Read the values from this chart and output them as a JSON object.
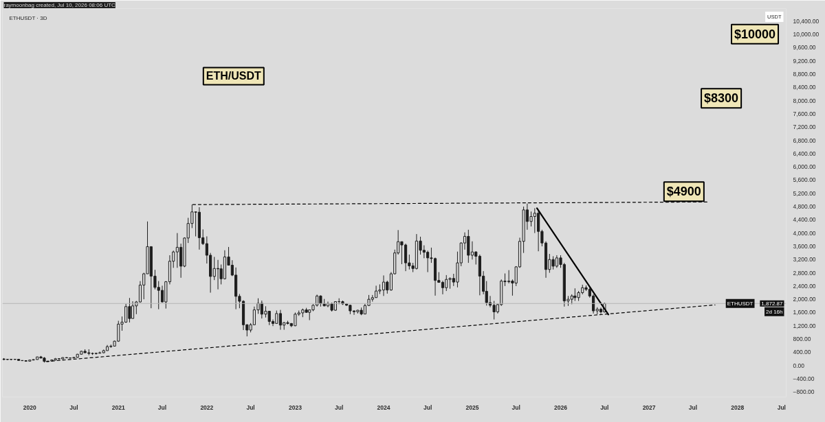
{
  "chart_data": {
    "type": "candlestick",
    "title": "ETH/USDT",
    "subtitle": "ETHUSDT · 3D",
    "ylabel": "USDT",
    "annotations": [
      "raymoonbag created, Jul 10, 2026 08:06 UTC",
      "$4900",
      "$8300",
      "$10000",
      "1,872.87",
      "2d 16h"
    ],
    "xlim": [
      "2019-09-10",
      "2028-07-20"
    ],
    "ylim": [
      -950,
      10780
    ],
    "xticks": [
      {
        "value": "2020",
        "label": "2020"
      },
      {
        "value": "2020-07",
        "label": "Jul"
      },
      {
        "value": "2021",
        "label": "2021"
      },
      {
        "value": "2021-07",
        "label": "Jul"
      },
      {
        "value": "2022",
        "label": "2022"
      },
      {
        "value": "2022-07",
        "label": "Jul"
      },
      {
        "value": "2023",
        "label": "2023"
      },
      {
        "value": "2023-07",
        "label": "Jul"
      },
      {
        "value": "2024",
        "label": "2024"
      },
      {
        "value": "2024-07",
        "label": "Jul"
      },
      {
        "value": "2025",
        "label": "2025"
      },
      {
        "value": "2025-07",
        "label": "Jul"
      },
      {
        "value": "2026",
        "label": "2026"
      },
      {
        "value": "2026-07",
        "label": "Jul"
      },
      {
        "value": "2027",
        "label": "2027"
      },
      {
        "value": "2027-07",
        "label": "Jul"
      },
      {
        "value": "2028",
        "label": "2028"
      },
      {
        "value": "2028-07",
        "label": "Jul"
      }
    ],
    "yticks": [
      {
        "value": -800,
        "label": "−800.00"
      },
      {
        "value": -400,
        "label": "−400.00"
      },
      {
        "value": 0,
        "label": "0.00"
      },
      {
        "value": 400,
        "label": "400.00"
      },
      {
        "value": 800,
        "label": "800.00"
      },
      {
        "value": 1200,
        "label": "1,200.00"
      },
      {
        "value": 1600,
        "label": "1,600.00"
      },
      {
        "value": 2000,
        "label": "2,000.00"
      },
      {
        "value": 2400,
        "label": "2,400.00"
      },
      {
        "value": 2800,
        "label": "2,800.00"
      },
      {
        "value": 3200,
        "label": "3,200.00"
      },
      {
        "value": 3600,
        "label": "3,600.00"
      },
      {
        "value": 4000,
        "label": "4,000.00"
      },
      {
        "value": 4400,
        "label": "4,400.00"
      },
      {
        "value": 4800,
        "label": "4,800.00"
      },
      {
        "value": 5200,
        "label": "5,200.00"
      },
      {
        "value": 5600,
        "label": "5,600.00"
      },
      {
        "value": 6000,
        "label": "6,000.00"
      },
      {
        "value": 6400,
        "label": "6,400.00"
      },
      {
        "value": 6800,
        "label": "6,800.00"
      },
      {
        "value": 7200,
        "label": "7,200.00"
      },
      {
        "value": 7600,
        "label": "7,600.00"
      },
      {
        "value": 8000,
        "label": "8,000.00"
      },
      {
        "value": 8400,
        "label": "8,400.00"
      },
      {
        "value": 8800,
        "label": "8,800.00"
      },
      {
        "value": 9200,
        "label": "9,200.00"
      },
      {
        "value": 9600,
        "label": "9,600.00"
      },
      {
        "value": 10000,
        "label": "10,000.00"
      },
      {
        "value": 10400,
        "label": "10,400.00"
      }
    ],
    "ref_lines": [
      {
        "axis": "y",
        "value": 1872.87,
        "label": "ETHUSDT",
        "color": "#b4b4b4"
      }
    ],
    "series": [
      {
        "color": "#1e1e1e",
        "x": [
          "2019-09-16",
          "2019-10-01",
          "2019-10-16",
          "2019-11-01",
          "2019-11-16",
          "2019-12-01",
          "2019-12-16",
          "2020-01-01",
          "2020-01-16",
          "2020-02-01",
          "2020-02-16",
          "2020-03-01",
          "2020-03-16",
          "2020-04-01",
          "2020-04-16",
          "2020-05-01",
          "2020-05-16",
          "2020-06-01",
          "2020-06-16",
          "2020-07-01",
          "2020-07-16",
          "2020-08-01",
          "2020-08-16",
          "2020-09-01",
          "2020-09-16",
          "2020-10-01",
          "2020-10-16",
          "2020-11-01",
          "2020-11-16",
          "2020-12-01",
          "2020-12-16",
          "2021-01-01",
          "2021-01-16",
          "2021-02-01",
          "2021-02-16",
          "2021-03-01",
          "2021-03-16",
          "2021-04-01",
          "2021-04-16",
          "2021-05-01",
          "2021-05-16",
          "2021-06-01",
          "2021-06-16",
          "2021-07-01",
          "2021-07-16",
          "2021-08-01",
          "2021-08-16",
          "2021-09-01",
          "2021-09-16",
          "2021-10-01",
          "2021-10-16",
          "2021-11-01",
          "2021-11-16",
          "2021-12-01",
          "2021-12-16",
          "2022-01-01",
          "2022-01-16",
          "2022-02-01",
          "2022-02-16",
          "2022-03-01",
          "2022-03-16",
          "2022-04-01",
          "2022-04-16",
          "2022-05-01",
          "2022-05-16",
          "2022-06-01",
          "2022-06-16",
          "2022-07-01",
          "2022-07-16",
          "2022-08-01",
          "2022-08-16",
          "2022-09-01",
          "2022-09-16",
          "2022-10-01",
          "2022-10-16",
          "2022-11-01",
          "2022-11-16",
          "2022-12-01",
          "2022-12-16",
          "2023-01-01",
          "2023-01-16",
          "2023-02-01",
          "2023-02-16",
          "2023-03-01",
          "2023-03-16",
          "2023-04-01",
          "2023-04-16",
          "2023-05-01",
          "2023-05-16",
          "2023-06-01",
          "2023-06-16",
          "2023-07-01",
          "2023-07-16",
          "2023-08-01",
          "2023-08-16",
          "2023-09-01",
          "2023-09-16",
          "2023-10-01",
          "2023-10-16",
          "2023-11-01",
          "2023-11-16",
          "2023-12-01",
          "2023-12-16",
          "2024-01-01",
          "2024-01-16",
          "2024-02-01",
          "2024-02-16",
          "2024-03-01",
          "2024-03-16",
          "2024-04-01",
          "2024-04-16",
          "2024-05-01",
          "2024-05-16",
          "2024-06-01",
          "2024-06-16",
          "2024-07-01",
          "2024-07-16",
          "2024-08-01",
          "2024-08-16",
          "2024-09-01",
          "2024-09-16",
          "2024-10-01",
          "2024-10-16",
          "2024-11-01",
          "2024-11-16",
          "2024-12-01",
          "2024-12-16",
          "2025-01-01",
          "2025-01-16",
          "2025-02-01",
          "2025-02-16",
          "2025-03-01",
          "2025-03-16",
          "2025-04-01",
          "2025-04-16",
          "2025-05-01",
          "2025-05-16",
          "2025-06-01",
          "2025-06-16",
          "2025-07-01",
          "2025-07-16",
          "2025-08-01",
          "2025-08-16",
          "2025-09-01",
          "2025-09-16",
          "2025-10-01",
          "2025-10-16",
          "2025-11-01",
          "2025-11-16",
          "2025-12-01",
          "2025-12-16",
          "2026-01-01",
          "2026-01-16",
          "2026-02-01",
          "2026-02-16",
          "2026-03-01",
          "2026-03-16",
          "2026-04-01",
          "2026-04-16",
          "2026-05-01",
          "2026-05-16",
          "2026-06-01",
          "2026-06-16",
          "2026-07-01"
        ],
        "ohlc": [
          [
            197,
            222,
            163,
            180
          ],
          [
            180,
            195,
            165,
            188
          ],
          [
            188,
            198,
            157,
            183
          ],
          [
            183,
            197,
            175,
            188
          ],
          [
            188,
            190,
            140,
            152
          ],
          [
            152,
            155,
            140,
            146
          ],
          [
            146,
            150,
            116,
            130
          ],
          [
            130,
            170,
            127,
            165
          ],
          [
            165,
            185,
            155,
            180
          ],
          [
            180,
            265,
            175,
            260
          ],
          [
            260,
            288,
            215,
            225
          ],
          [
            225,
            253,
            90,
            125
          ],
          [
            125,
            140,
            100,
            133
          ],
          [
            133,
            175,
            130,
            170
          ],
          [
            170,
            227,
            150,
            205
          ],
          [
            205,
            215,
            180,
            200
          ],
          [
            200,
            245,
            195,
            240
          ],
          [
            240,
            250,
            225,
            230
          ],
          [
            230,
            240,
            215,
            225
          ],
          [
            225,
            250,
            220,
            245
          ],
          [
            245,
            350,
            235,
            340
          ],
          [
            340,
            445,
            340,
            430
          ],
          [
            430,
            490,
            380,
            385
          ],
          [
            385,
            490,
            310,
            365
          ],
          [
            365,
            390,
            320,
            360
          ],
          [
            360,
            385,
            330,
            370
          ],
          [
            370,
            420,
            365,
            385
          ],
          [
            385,
            480,
            370,
            450
          ],
          [
            450,
            620,
            445,
            570
          ],
          [
            570,
            630,
            535,
            585
          ],
          [
            585,
            750,
            580,
            735
          ],
          [
            735,
            1350,
            715,
            1250
          ],
          [
            1250,
            1480,
            1050,
            1310
          ],
          [
            1310,
            1860,
            1290,
            1780
          ],
          [
            1780,
            2040,
            1300,
            1420
          ],
          [
            1420,
            1940,
            1420,
            1800
          ],
          [
            1800,
            1950,
            1550,
            1920
          ],
          [
            1920,
            2550,
            1900,
            2430
          ],
          [
            2430,
            2800,
            2000,
            2770
          ],
          [
            2770,
            4350,
            2770,
            3590
          ],
          [
            3590,
            3600,
            1730,
            2700
          ],
          [
            2700,
            2890,
            2300,
            2360
          ],
          [
            2360,
            2550,
            1700,
            2270
          ],
          [
            2270,
            2410,
            1900,
            1920
          ],
          [
            1920,
            2550,
            1720,
            2530
          ],
          [
            2530,
            3330,
            2450,
            3150
          ],
          [
            3150,
            3470,
            2950,
            3430
          ],
          [
            3430,
            4000,
            2950,
            3570
          ],
          [
            3570,
            3680,
            2650,
            3000
          ],
          [
            3000,
            3870,
            2970,
            3850
          ],
          [
            3850,
            4460,
            3700,
            4290
          ],
          [
            4290,
            4860,
            4150,
            4640
          ],
          [
            4640,
            4640,
            3900,
            4630
          ],
          [
            4630,
            4780,
            3500,
            3860
          ],
          [
            3860,
            4110,
            3640,
            3680
          ],
          [
            3680,
            3900,
            3080,
            3330
          ],
          [
            3330,
            3400,
            2200,
            2690
          ],
          [
            2690,
            3280,
            2580,
            2930
          ],
          [
            2930,
            3190,
            2300,
            2920
          ],
          [
            2920,
            3050,
            2450,
            2620
          ],
          [
            2620,
            3480,
            2600,
            3280
          ],
          [
            3280,
            3580,
            3020,
            3030
          ],
          [
            3030,
            3180,
            2700,
            2730
          ],
          [
            2730,
            2960,
            1700,
            2090
          ],
          [
            2090,
            2160,
            1730,
            1940
          ],
          [
            1940,
            1970,
            1070,
            1230
          ],
          [
            1230,
            1250,
            880,
            1070
          ],
          [
            1070,
            1280,
            1000,
            1230
          ],
          [
            1230,
            1780,
            1230,
            1680
          ],
          [
            1680,
            2030,
            1560,
            1880
          ],
          [
            1880,
            1960,
            1420,
            1550
          ],
          [
            1550,
            1790,
            1450,
            1640
          ],
          [
            1640,
            1650,
            1220,
            1330
          ],
          [
            1330,
            1390,
            1190,
            1270
          ],
          [
            1270,
            1660,
            1270,
            1570
          ],
          [
            1570,
            1680,
            1080,
            1220
          ],
          [
            1220,
            1310,
            1080,
            1295
          ],
          [
            1295,
            1350,
            1240,
            1270
          ],
          [
            1270,
            1280,
            1160,
            1200
          ],
          [
            1200,
            1600,
            1190,
            1550
          ],
          [
            1550,
            1660,
            1500,
            1590
          ],
          [
            1590,
            1720,
            1460,
            1680
          ],
          [
            1680,
            1740,
            1590,
            1605
          ],
          [
            1605,
            1680,
            1370,
            1680
          ],
          [
            1680,
            1850,
            1640,
            1820
          ],
          [
            1820,
            2140,
            1780,
            2100
          ],
          [
            2100,
            2120,
            1780,
            1870
          ],
          [
            1870,
            2010,
            1790,
            1800
          ],
          [
            1800,
            1930,
            1760,
            1870
          ],
          [
            1870,
            1900,
            1630,
            1670
          ],
          [
            1670,
            1930,
            1650,
            1930
          ],
          [
            1930,
            2030,
            1850,
            1930
          ],
          [
            1930,
            1960,
            1830,
            1860
          ],
          [
            1860,
            1880,
            1800,
            1820
          ],
          [
            1820,
            1830,
            1550,
            1650
          ],
          [
            1650,
            1660,
            1530,
            1625
          ],
          [
            1625,
            1680,
            1570,
            1670
          ],
          [
            1670,
            1750,
            1520,
            1555
          ],
          [
            1555,
            1860,
            1550,
            1810
          ],
          [
            1810,
            2130,
            1800,
            2000
          ],
          [
            2000,
            2130,
            1930,
            2050
          ],
          [
            2050,
            2410,
            2050,
            2250
          ],
          [
            2250,
            2450,
            2160,
            2280
          ],
          [
            2280,
            2720,
            2100,
            2520
          ],
          [
            2520,
            2560,
            2170,
            2280
          ],
          [
            2280,
            2820,
            2260,
            2770
          ],
          [
            2770,
            3500,
            2750,
            3400
          ],
          [
            3400,
            4090,
            3350,
            3740
          ],
          [
            3740,
            3740,
            3060,
            3640
          ],
          [
            3640,
            3680,
            2850,
            3100
          ],
          [
            3100,
            3350,
            2900,
            3010
          ],
          [
            3010,
            3100,
            2820,
            2930
          ],
          [
            2930,
            3970,
            2900,
            3760
          ],
          [
            3760,
            3890,
            3350,
            3480
          ],
          [
            3480,
            3630,
            3240,
            3420
          ],
          [
            3420,
            3470,
            2820,
            3250
          ],
          [
            3250,
            3560,
            3100,
            3230
          ],
          [
            3230,
            3260,
            2110,
            2570
          ],
          [
            2570,
            2820,
            2500,
            2510
          ],
          [
            2510,
            2560,
            2150,
            2350
          ],
          [
            2350,
            2730,
            2250,
            2600
          ],
          [
            2600,
            2660,
            2320,
            2630
          ],
          [
            2630,
            2770,
            2400,
            2520
          ],
          [
            2520,
            3440,
            2360,
            3100
          ],
          [
            3100,
            3720,
            3000,
            3700
          ],
          [
            3700,
            4020,
            3500,
            3900
          ],
          [
            3900,
            4100,
            3100,
            3330
          ],
          [
            3330,
            3750,
            3200,
            3430
          ],
          [
            3430,
            3450,
            3050,
            3300
          ],
          [
            3300,
            3350,
            2120,
            2700
          ],
          [
            2700,
            2850,
            2150,
            2240
          ],
          [
            2240,
            2550,
            1810,
            1900
          ],
          [
            1900,
            2100,
            1760,
            1820
          ],
          [
            1820,
            1950,
            1390,
            1620
          ],
          [
            1620,
            1860,
            1570,
            1840
          ],
          [
            1840,
            2600,
            1800,
            2550
          ],
          [
            2550,
            2780,
            2400,
            2530
          ],
          [
            2530,
            2880,
            2480,
            2550
          ],
          [
            2550,
            2600,
            2110,
            2490
          ],
          [
            2490,
            3000,
            2400,
            2980
          ],
          [
            2980,
            3860,
            2950,
            3750
          ],
          [
            3750,
            4800,
            3400,
            4700
          ],
          [
            4700,
            4890,
            4100,
            4350
          ],
          [
            4350,
            4650,
            4200,
            4500
          ],
          [
            4500,
            4750,
            4000,
            4600
          ],
          [
            4600,
            4700,
            3450,
            4050
          ],
          [
            4050,
            4100,
            3600,
            3700
          ],
          [
            3700,
            3750,
            2650,
            2900
          ],
          [
            2900,
            3370,
            2800,
            3200
          ],
          [
            3200,
            3300,
            2900,
            3000
          ],
          [
            3000,
            3330,
            2950,
            3250
          ],
          [
            3250,
            3330,
            2950,
            3050
          ],
          [
            3050,
            3100,
            1780,
            1950
          ],
          [
            1950,
            2100,
            1800,
            2000
          ],
          [
            2000,
            2150,
            1850,
            2100
          ],
          [
            2100,
            2330,
            1950,
            2050
          ],
          [
            2050,
            2250,
            1950,
            2200
          ],
          [
            2200,
            2440,
            2150,
            2350
          ],
          [
            2350,
            2420,
            2250,
            2300
          ],
          [
            2300,
            2350,
            2050,
            2100
          ],
          [
            2100,
            2150,
            1570,
            1650
          ],
          [
            1650,
            1760,
            1550,
            1700
          ],
          [
            1700,
            1750,
            1560,
            1620
          ],
          [
            1620,
            1900,
            1600,
            1870
          ]
        ]
      },
      {
        "type": "line",
        "color": "#000000",
        "line_style": "dashed",
        "x": [
          "2021-11-04",
          "2027-09-01"
        ],
        "values": [
          4860,
          4940
        ]
      },
      {
        "type": "line",
        "color": "#000000",
        "line_style": "dashed",
        "x": [
          "2020-03-09",
          "2027-09-30"
        ],
        "values": [
          120,
          1830
        ]
      },
      {
        "type": "line",
        "color": "#000000",
        "line_style": "solid",
        "x": [
          "2025-09-25",
          "2026-07-17"
        ],
        "values": [
          4750,
          1540
        ]
      }
    ]
  }
}
